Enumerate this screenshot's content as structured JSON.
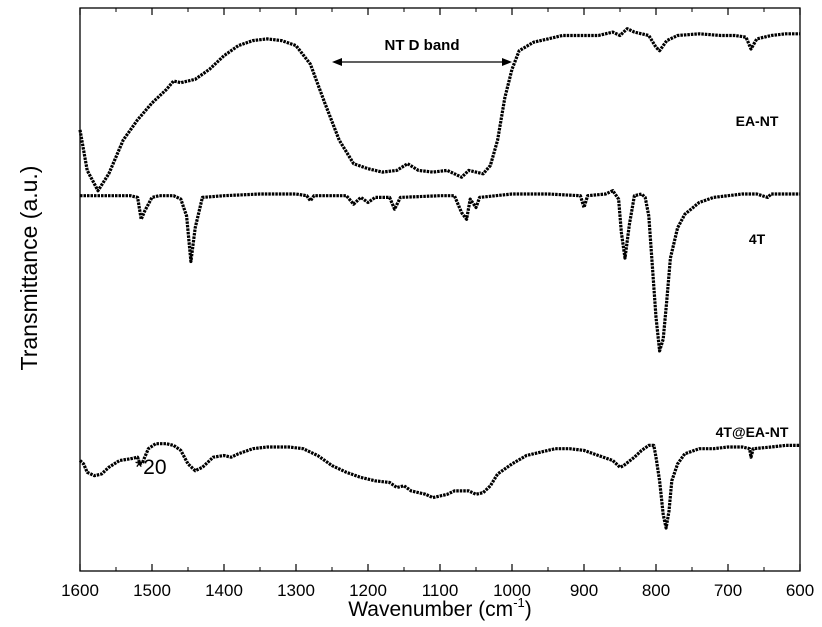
{
  "chart_data": {
    "type": "line",
    "xlabel": "Wavenumber (cm",
    "xlabel_sup": "-1",
    "xlabel_suffix": ")",
    "ylabel": "Transmittance (a.u.)",
    "xlim": [
      1600,
      600
    ],
    "x_inverted": true,
    "y_ticks": false,
    "grid": false,
    "legend": "none",
    "line_color": "#000000",
    "x_ticks": [
      1600,
      1500,
      1400,
      1300,
      1200,
      1100,
      1000,
      900,
      800,
      700,
      600
    ],
    "x_tick_labels": [
      "1600",
      "1500",
      "1400",
      "1300",
      "1200",
      "1100",
      "1000",
      "900",
      "800",
      "700",
      "600"
    ],
    "series": [
      {
        "name": "EA-NT",
        "points": [
          [
            1600,
            0.36
          ],
          [
            1590,
            0.12
          ],
          [
            1575,
            0.0
          ],
          [
            1560,
            0.1
          ],
          [
            1540,
            0.3
          ],
          [
            1520,
            0.42
          ],
          [
            1500,
            0.52
          ],
          [
            1480,
            0.6
          ],
          [
            1470,
            0.65
          ],
          [
            1460,
            0.64
          ],
          [
            1440,
            0.66
          ],
          [
            1420,
            0.72
          ],
          [
            1400,
            0.8
          ],
          [
            1380,
            0.86
          ],
          [
            1360,
            0.89
          ],
          [
            1340,
            0.9
          ],
          [
            1320,
            0.89
          ],
          [
            1300,
            0.86
          ],
          [
            1280,
            0.75
          ],
          [
            1260,
            0.52
          ],
          [
            1240,
            0.3
          ],
          [
            1220,
            0.16
          ],
          [
            1200,
            0.13
          ],
          [
            1180,
            0.11
          ],
          [
            1160,
            0.12
          ],
          [
            1145,
            0.16
          ],
          [
            1130,
            0.12
          ],
          [
            1110,
            0.11
          ],
          [
            1090,
            0.12
          ],
          [
            1070,
            0.08
          ],
          [
            1060,
            0.12
          ],
          [
            1040,
            0.1
          ],
          [
            1030,
            0.15
          ],
          [
            1020,
            0.3
          ],
          [
            1010,
            0.55
          ],
          [
            1000,
            0.72
          ],
          [
            990,
            0.83
          ],
          [
            970,
            0.88
          ],
          [
            950,
            0.9
          ],
          [
            930,
            0.92
          ],
          [
            900,
            0.92
          ],
          [
            880,
            0.92
          ],
          [
            860,
            0.94
          ],
          [
            850,
            0.92
          ],
          [
            840,
            0.96
          ],
          [
            830,
            0.94
          ],
          [
            820,
            0.93
          ],
          [
            810,
            0.92
          ],
          [
            800,
            0.85
          ],
          [
            795,
            0.83
          ],
          [
            785,
            0.89
          ],
          [
            770,
            0.92
          ],
          [
            740,
            0.93
          ],
          [
            710,
            0.92
          ],
          [
            690,
            0.92
          ],
          [
            675,
            0.91
          ],
          [
            668,
            0.84
          ],
          [
            660,
            0.9
          ],
          [
            640,
            0.92
          ],
          [
            620,
            0.93
          ],
          [
            600,
            0.93
          ]
        ],
        "baseline": 2.0,
        "span": 1.0
      },
      {
        "name": "4T",
        "points": [
          [
            1600,
            0.97
          ],
          [
            1560,
            0.97
          ],
          [
            1530,
            0.97
          ],
          [
            1520,
            0.96
          ],
          [
            1515,
            0.83
          ],
          [
            1510,
            0.88
          ],
          [
            1500,
            0.96
          ],
          [
            1490,
            0.97
          ],
          [
            1470,
            0.97
          ],
          [
            1460,
            0.95
          ],
          [
            1452,
            0.85
          ],
          [
            1446,
            0.58
          ],
          [
            1440,
            0.78
          ],
          [
            1430,
            0.96
          ],
          [
            1400,
            0.97
          ],
          [
            1350,
            0.98
          ],
          [
            1300,
            0.98
          ],
          [
            1285,
            0.97
          ],
          [
            1280,
            0.94
          ],
          [
            1275,
            0.97
          ],
          [
            1230,
            0.97
          ],
          [
            1220,
            0.92
          ],
          [
            1210,
            0.96
          ],
          [
            1200,
            0.93
          ],
          [
            1190,
            0.96
          ],
          [
            1170,
            0.96
          ],
          [
            1163,
            0.89
          ],
          [
            1155,
            0.96
          ],
          [
            1100,
            0.97
          ],
          [
            1080,
            0.97
          ],
          [
            1070,
            0.87
          ],
          [
            1063,
            0.83
          ],
          [
            1058,
            0.95
          ],
          [
            1050,
            0.9
          ],
          [
            1045,
            0.96
          ],
          [
            1000,
            0.98
          ],
          [
            950,
            0.98
          ],
          [
            905,
            0.97
          ],
          [
            900,
            0.9
          ],
          [
            895,
            0.97
          ],
          [
            870,
            0.98
          ],
          [
            860,
            1.0
          ],
          [
            852,
            0.95
          ],
          [
            848,
            0.75
          ],
          [
            843,
            0.6
          ],
          [
            837,
            0.8
          ],
          [
            830,
            0.97
          ],
          [
            820,
            0.98
          ],
          [
            815,
            0.96
          ],
          [
            810,
            0.85
          ],
          [
            805,
            0.55
          ],
          [
            800,
            0.25
          ],
          [
            795,
            0.05
          ],
          [
            790,
            0.12
          ],
          [
            785,
            0.35
          ],
          [
            780,
            0.6
          ],
          [
            770,
            0.78
          ],
          [
            760,
            0.86
          ],
          [
            740,
            0.93
          ],
          [
            720,
            0.96
          ],
          [
            700,
            0.97
          ],
          [
            680,
            0.98
          ],
          [
            660,
            0.98
          ],
          [
            645,
            0.96
          ],
          [
            640,
            0.98
          ],
          [
            620,
            0.98
          ],
          [
            600,
            0.98
          ]
        ],
        "baseline": 1.0,
        "span": 1.0
      },
      {
        "name": "4T@EA-NT",
        "points": [
          [
            1600,
            0.4
          ],
          [
            1595,
            0.38
          ],
          [
            1590,
            0.33
          ],
          [
            1580,
            0.31
          ],
          [
            1570,
            0.32
          ],
          [
            1560,
            0.36
          ],
          [
            1545,
            0.4
          ],
          [
            1530,
            0.41
          ],
          [
            1520,
            0.42
          ],
          [
            1517,
            0.38
          ],
          [
            1513,
            0.39
          ],
          [
            1505,
            0.47
          ],
          [
            1495,
            0.5
          ],
          [
            1480,
            0.5
          ],
          [
            1470,
            0.49
          ],
          [
            1460,
            0.46
          ],
          [
            1450,
            0.38
          ],
          [
            1440,
            0.34
          ],
          [
            1430,
            0.36
          ],
          [
            1415,
            0.42
          ],
          [
            1400,
            0.43
          ],
          [
            1390,
            0.42
          ],
          [
            1380,
            0.44
          ],
          [
            1360,
            0.47
          ],
          [
            1340,
            0.48
          ],
          [
            1310,
            0.48
          ],
          [
            1290,
            0.47
          ],
          [
            1270,
            0.43
          ],
          [
            1250,
            0.37
          ],
          [
            1230,
            0.33
          ],
          [
            1210,
            0.3
          ],
          [
            1190,
            0.28
          ],
          [
            1170,
            0.27
          ],
          [
            1160,
            0.24
          ],
          [
            1150,
            0.25
          ],
          [
            1140,
            0.22
          ],
          [
            1120,
            0.2
          ],
          [
            1110,
            0.18
          ],
          [
            1100,
            0.19
          ],
          [
            1090,
            0.2
          ],
          [
            1080,
            0.22
          ],
          [
            1060,
            0.22
          ],
          [
            1050,
            0.2
          ],
          [
            1040,
            0.21
          ],
          [
            1030,
            0.25
          ],
          [
            1020,
            0.32
          ],
          [
            1000,
            0.38
          ],
          [
            980,
            0.43
          ],
          [
            960,
            0.45
          ],
          [
            940,
            0.47
          ],
          [
            920,
            0.47
          ],
          [
            900,
            0.46
          ],
          [
            880,
            0.43
          ],
          [
            860,
            0.4
          ],
          [
            850,
            0.36
          ],
          [
            845,
            0.37
          ],
          [
            830,
            0.42
          ],
          [
            820,
            0.46
          ],
          [
            810,
            0.49
          ],
          [
            803,
            0.49
          ],
          [
            800,
            0.42
          ],
          [
            795,
            0.28
          ],
          [
            790,
            0.08
          ],
          [
            786,
            0.0
          ],
          [
            782,
            0.1
          ],
          [
            778,
            0.28
          ],
          [
            770,
            0.38
          ],
          [
            760,
            0.44
          ],
          [
            740,
            0.47
          ],
          [
            720,
            0.47
          ],
          [
            700,
            0.48
          ],
          [
            680,
            0.48
          ],
          [
            670,
            0.47
          ],
          [
            668,
            0.42
          ],
          [
            665,
            0.47
          ],
          [
            640,
            0.48
          ],
          [
            620,
            0.49
          ],
          [
            600,
            0.49
          ]
        ],
        "baseline": 0.0,
        "span": 1.0
      }
    ],
    "annotations": {
      "band_label": "NT D band",
      "band_range": [
        1250,
        1000
      ],
      "scale_note": "*20"
    }
  }
}
